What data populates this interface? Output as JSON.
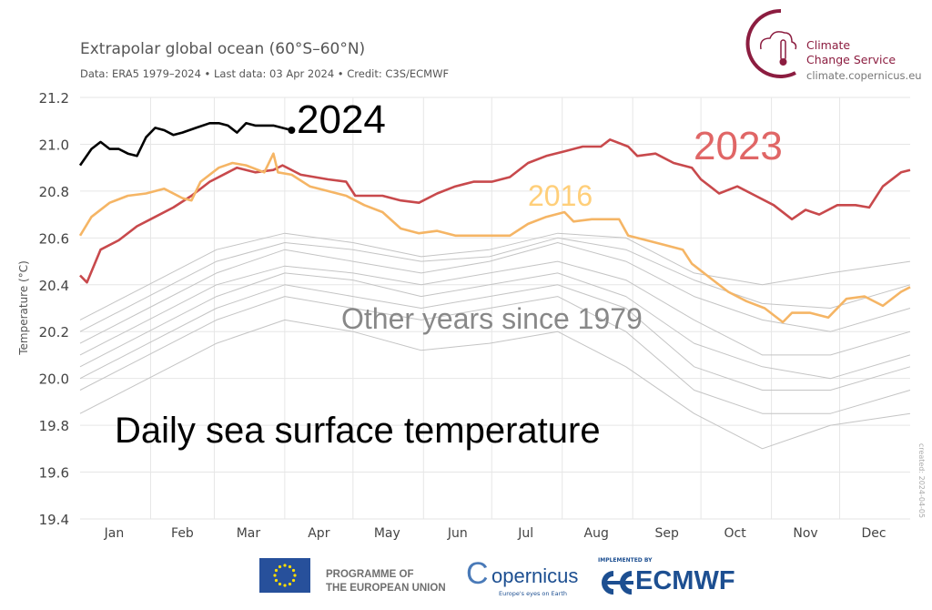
{
  "header": {
    "title": "Extrapolar global ocean (60°S–60°N)",
    "subtitle": "Data: ERA5 1979–2024 • Last data: 03 Apr 2024 • Credit: C3S/ECMWF"
  },
  "logo": {
    "line1": "Climate",
    "line2": "Change Service",
    "url": "climate.copernicus.eu",
    "color": "#8c1d40"
  },
  "footer": {
    "eu_line1": "PROGRAMME OF",
    "eu_line2": "THE EUROPEAN UNION",
    "copernicus": "opernicus",
    "copernicus_c": "C",
    "copernicus_tagline": "Europe's eyes on Earth",
    "ecmwf_top": "IMPLEMENTED BY",
    "ecmwf": "ECMWF"
  },
  "created": "created: 2024-04-05",
  "chart_data": {
    "type": "line",
    "title": "Extrapolar global ocean (60°S–60°N)",
    "ylabel": "Temperature (°C)",
    "xlabel": "",
    "ylim": [
      19.4,
      21.2
    ],
    "xlim_days": [
      0,
      365
    ],
    "yticks": [
      "19.4",
      "19.6",
      "19.8",
      "20.0",
      "20.2",
      "20.4",
      "20.6",
      "20.8",
      "21.0",
      "21.2"
    ],
    "xticks": [
      {
        "label": "Jan",
        "day": 15
      },
      {
        "label": "Feb",
        "day": 45
      },
      {
        "label": "Mar",
        "day": 74
      },
      {
        "label": "Apr",
        "day": 105
      },
      {
        "label": "May",
        "day": 135
      },
      {
        "label": "Jun",
        "day": 166
      },
      {
        "label": "Jul",
        "day": 196
      },
      {
        "label": "Aug",
        "day": 227
      },
      {
        "label": "Sep",
        "day": 258
      },
      {
        "label": "Oct",
        "day": 288
      },
      {
        "label": "Nov",
        "day": 319
      },
      {
        "label": "Dec",
        "day": 349
      }
    ],
    "grid": true,
    "annotations": {
      "y2024": "2024",
      "y2023": "2023",
      "y2016": "2016",
      "other": "Other years since 1979",
      "main": "Daily sea surface temperature"
    },
    "series": [
      {
        "name": "2024",
        "color": "#000000",
        "points": [
          [
            0,
            20.91
          ],
          [
            5,
            20.98
          ],
          [
            9,
            21.01
          ],
          [
            13,
            20.98
          ],
          [
            17,
            20.98
          ],
          [
            21,
            20.96
          ],
          [
            25,
            20.95
          ],
          [
            29,
            21.03
          ],
          [
            33,
            21.07
          ],
          [
            37,
            21.06
          ],
          [
            41,
            21.04
          ],
          [
            45,
            21.05
          ],
          [
            51,
            21.07
          ],
          [
            57,
            21.09
          ],
          [
            61,
            21.09
          ],
          [
            65,
            21.08
          ],
          [
            69,
            21.05
          ],
          [
            73,
            21.09
          ],
          [
            77,
            21.08
          ],
          [
            85,
            21.08
          ],
          [
            93,
            21.06
          ]
        ]
      },
      {
        "name": "2023",
        "color": "#c8494c",
        "points": [
          [
            0,
            20.44
          ],
          [
            3,
            20.41
          ],
          [
            9,
            20.55
          ],
          [
            17,
            20.59
          ],
          [
            25,
            20.65
          ],
          [
            33,
            20.69
          ],
          [
            41,
            20.73
          ],
          [
            49,
            20.78
          ],
          [
            57,
            20.84
          ],
          [
            65,
            20.88
          ],
          [
            69,
            20.9
          ],
          [
            77,
            20.88
          ],
          [
            85,
            20.89
          ],
          [
            89,
            20.91
          ],
          [
            97,
            20.87
          ],
          [
            109,
            20.85
          ],
          [
            117,
            20.84
          ],
          [
            121,
            20.78
          ],
          [
            133,
            20.78
          ],
          [
            141,
            20.76
          ],
          [
            149,
            20.75
          ],
          [
            157,
            20.79
          ],
          [
            165,
            20.82
          ],
          [
            173,
            20.84
          ],
          [
            181,
            20.84
          ],
          [
            189,
            20.86
          ],
          [
            197,
            20.92
          ],
          [
            205,
            20.95
          ],
          [
            213,
            20.97
          ],
          [
            221,
            20.99
          ],
          [
            229,
            20.99
          ],
          [
            233,
            21.02
          ],
          [
            241,
            20.99
          ],
          [
            245,
            20.95
          ],
          [
            253,
            20.96
          ],
          [
            261,
            20.92
          ],
          [
            269,
            20.9
          ],
          [
            273,
            20.85
          ],
          [
            277,
            20.82
          ],
          [
            281,
            20.79
          ],
          [
            289,
            20.82
          ],
          [
            297,
            20.78
          ],
          [
            305,
            20.74
          ],
          [
            313,
            20.68
          ],
          [
            319,
            20.72
          ],
          [
            325,
            20.7
          ],
          [
            333,
            20.74
          ],
          [
            341,
            20.74
          ],
          [
            347,
            20.73
          ],
          [
            353,
            20.82
          ],
          [
            361,
            20.88
          ],
          [
            365,
            20.89
          ]
        ]
      },
      {
        "name": "2016",
        "color": "#f5b565",
        "points": [
          [
            0,
            20.61
          ],
          [
            5,
            20.69
          ],
          [
            13,
            20.75
          ],
          [
            21,
            20.78
          ],
          [
            29,
            20.79
          ],
          [
            37,
            20.81
          ],
          [
            45,
            20.77
          ],
          [
            49,
            20.76
          ],
          [
            53,
            20.84
          ],
          [
            61,
            20.9
          ],
          [
            67,
            20.92
          ],
          [
            73,
            20.91
          ],
          [
            81,
            20.88
          ],
          [
            85,
            20.96
          ],
          [
            87,
            20.88
          ],
          [
            93,
            20.87
          ],
          [
            101,
            20.82
          ],
          [
            109,
            20.8
          ],
          [
            117,
            20.78
          ],
          [
            125,
            20.74
          ],
          [
            133,
            20.71
          ],
          [
            141,
            20.64
          ],
          [
            149,
            20.62
          ],
          [
            157,
            20.63
          ],
          [
            165,
            20.61
          ],
          [
            173,
            20.61
          ],
          [
            181,
            20.61
          ],
          [
            189,
            20.61
          ],
          [
            197,
            20.66
          ],
          [
            205,
            20.69
          ],
          [
            213,
            20.71
          ],
          [
            217,
            20.67
          ],
          [
            225,
            20.68
          ],
          [
            237,
            20.68
          ],
          [
            241,
            20.61
          ],
          [
            249,
            20.59
          ],
          [
            257,
            20.57
          ],
          [
            265,
            20.55
          ],
          [
            269,
            20.49
          ],
          [
            277,
            20.43
          ],
          [
            285,
            20.37
          ],
          [
            293,
            20.33
          ],
          [
            301,
            20.3
          ],
          [
            309,
            20.24
          ],
          [
            313,
            20.28
          ],
          [
            321,
            20.28
          ],
          [
            329,
            20.26
          ],
          [
            337,
            20.34
          ],
          [
            345,
            20.35
          ],
          [
            353,
            20.31
          ],
          [
            361,
            20.37
          ],
          [
            365,
            20.39
          ]
        ]
      },
      {
        "color": "#c4c4c4",
        "points": [
          [
            0,
            20.05
          ],
          [
            30,
            20.2
          ],
          [
            60,
            20.35
          ],
          [
            90,
            20.45
          ],
          [
            120,
            20.42
          ],
          [
            150,
            20.35
          ],
          [
            180,
            20.4
          ],
          [
            210,
            20.45
          ],
          [
            240,
            20.35
          ],
          [
            270,
            20.15
          ],
          [
            300,
            20.05
          ],
          [
            330,
            20.0
          ],
          [
            365,
            20.1
          ]
        ]
      },
      {
        "color": "#c4c4c4",
        "points": [
          [
            0,
            20.15
          ],
          [
            30,
            20.3
          ],
          [
            60,
            20.45
          ],
          [
            90,
            20.55
          ],
          [
            120,
            20.5
          ],
          [
            150,
            20.45
          ],
          [
            180,
            20.5
          ],
          [
            210,
            20.58
          ],
          [
            240,
            20.5
          ],
          [
            270,
            20.35
          ],
          [
            300,
            20.25
          ],
          [
            330,
            20.2
          ],
          [
            365,
            20.3
          ]
        ]
      },
      {
        "color": "#c4c4c4",
        "points": [
          [
            0,
            19.95
          ],
          [
            30,
            20.1
          ],
          [
            60,
            20.25
          ],
          [
            90,
            20.35
          ],
          [
            120,
            20.3
          ],
          [
            150,
            20.25
          ],
          [
            180,
            20.3
          ],
          [
            210,
            20.35
          ],
          [
            240,
            20.2
          ],
          [
            270,
            19.95
          ],
          [
            300,
            19.85
          ],
          [
            330,
            19.85
          ],
          [
            365,
            19.95
          ]
        ]
      },
      {
        "color": "#c4c4c4",
        "points": [
          [
            0,
            20.25
          ],
          [
            30,
            20.4
          ],
          [
            60,
            20.55
          ],
          [
            90,
            20.62
          ],
          [
            120,
            20.58
          ],
          [
            150,
            20.52
          ],
          [
            180,
            20.55
          ],
          [
            210,
            20.62
          ],
          [
            240,
            20.6
          ],
          [
            270,
            20.45
          ],
          [
            300,
            20.4
          ],
          [
            330,
            20.45
          ],
          [
            365,
            20.5
          ]
        ]
      },
      {
        "color": "#c4c4c4",
        "points": [
          [
            0,
            19.85
          ],
          [
            30,
            20.0
          ],
          [
            60,
            20.15
          ],
          [
            90,
            20.25
          ],
          [
            120,
            20.2
          ],
          [
            150,
            20.12
          ],
          [
            180,
            20.15
          ],
          [
            210,
            20.2
          ],
          [
            240,
            20.05
          ],
          [
            270,
            19.85
          ],
          [
            300,
            19.7
          ],
          [
            330,
            19.8
          ],
          [
            365,
            19.85
          ]
        ]
      },
      {
        "color": "#c4c4c4",
        "points": [
          [
            0,
            20.1
          ],
          [
            30,
            20.25
          ],
          [
            60,
            20.4
          ],
          [
            90,
            20.48
          ],
          [
            120,
            20.45
          ],
          [
            150,
            20.4
          ],
          [
            180,
            20.45
          ],
          [
            210,
            20.5
          ],
          [
            240,
            20.42
          ],
          [
            270,
            20.25
          ],
          [
            300,
            20.1
          ],
          [
            330,
            20.1
          ],
          [
            365,
            20.2
          ]
        ]
      },
      {
        "color": "#c4c4c4",
        "points": [
          [
            0,
            20.0
          ],
          [
            30,
            20.15
          ],
          [
            60,
            20.3
          ],
          [
            90,
            20.4
          ],
          [
            120,
            20.35
          ],
          [
            150,
            20.3
          ],
          [
            180,
            20.35
          ],
          [
            210,
            20.4
          ],
          [
            240,
            20.3
          ],
          [
            270,
            20.05
          ],
          [
            300,
            19.95
          ],
          [
            330,
            19.95
          ],
          [
            365,
            20.05
          ]
        ]
      },
      {
        "color": "#c4c4c4",
        "points": [
          [
            0,
            20.2
          ],
          [
            30,
            20.35
          ],
          [
            60,
            20.5
          ],
          [
            90,
            20.58
          ],
          [
            120,
            20.55
          ],
          [
            150,
            20.5
          ],
          [
            180,
            20.52
          ],
          [
            210,
            20.6
          ],
          [
            240,
            20.55
          ],
          [
            270,
            20.42
          ],
          [
            300,
            20.32
          ],
          [
            330,
            20.3
          ],
          [
            365,
            20.4
          ]
        ]
      }
    ]
  }
}
